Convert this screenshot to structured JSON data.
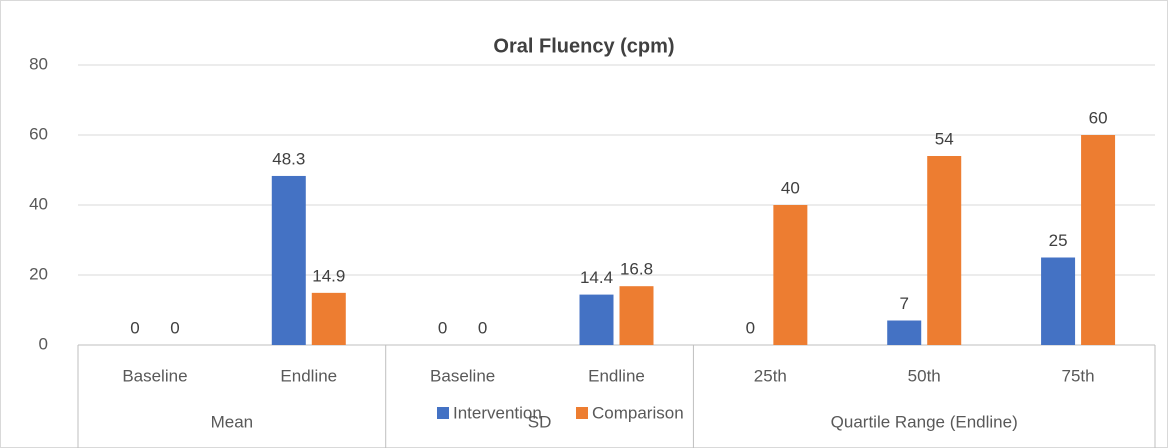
{
  "chart_data": {
    "type": "bar",
    "title": "Oral Fluency (cpm)",
    "category_groups": [
      {
        "label": "Mean",
        "categories": [
          "Baseline",
          "Endline"
        ]
      },
      {
        "label": "SD",
        "categories": [
          "Baseline",
          "Endline"
        ]
      },
      {
        "label": "Quartile Range (Endline)",
        "categories": [
          "25th",
          "50th",
          "75th"
        ]
      }
    ],
    "series": [
      {
        "name": "Intervention",
        "color": "#4472c4",
        "values": [
          0,
          48.3,
          0,
          14.4,
          0,
          7,
          25
        ]
      },
      {
        "name": "Comparison",
        "color": "#ed7d31",
        "values": [
          0,
          14.9,
          0,
          16.8,
          40,
          54,
          60
        ]
      }
    ],
    "ylim": [
      0,
      80
    ],
    "yticks": [
      0,
      20,
      40,
      60,
      80
    ],
    "grid": true,
    "data_labels": true,
    "legend": "bottom"
  }
}
